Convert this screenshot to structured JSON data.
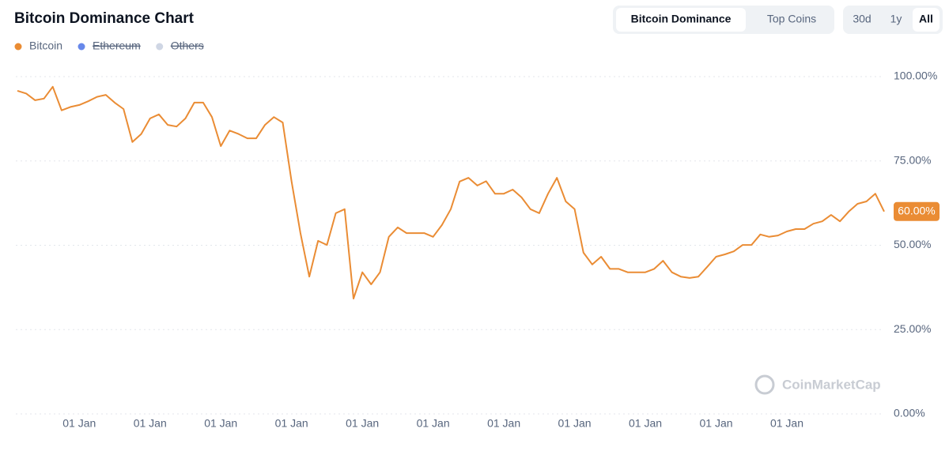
{
  "chart_data": {
    "type": "line",
    "title": "Bitcoin Dominance Chart",
    "tabs": {
      "items": [
        "Bitcoin Dominance",
        "Top Coins"
      ],
      "active": 0
    },
    "ranges": {
      "items": [
        "30d",
        "1y",
        "All"
      ],
      "active": 2
    },
    "watermark": "CoinMarketCap",
    "categories": [
      null,
      null,
      null,
      null,
      null,
      null,
      null,
      "01 Jan",
      null,
      null,
      null,
      null,
      null,
      null,
      null,
      "01 Jan",
      null,
      null,
      null,
      null,
      null,
      null,
      null,
      "01 Jan",
      null,
      null,
      null,
      null,
      null,
      null,
      null,
      "01 Jan",
      null,
      null,
      null,
      null,
      null,
      null,
      null,
      "01 Jan",
      null,
      null,
      null,
      null,
      null,
      null,
      null,
      "01 Jan",
      null,
      null,
      null,
      null,
      null,
      null,
      null,
      "01 Jan",
      null,
      null,
      null,
      null,
      null,
      null,
      null,
      "01 Jan",
      null,
      null,
      null,
      null,
      null,
      null,
      null,
      "01 Jan",
      null,
      null,
      null,
      null,
      null,
      null,
      null,
      "01 Jan",
      null,
      null,
      null,
      null,
      null,
      null,
      null,
      "01 Jan",
      null,
      null,
      null,
      null,
      null,
      null,
      null,
      null,
      null,
      null,
      null
    ],
    "series": [
      {
        "name": "Bitcoin",
        "color": "#ea8c34",
        "values": [
          95.8,
          95,
          93,
          93.5,
          97,
          90,
          91,
          91.6,
          92.7,
          94,
          94.6,
          92.3,
          90.4,
          80.6,
          83,
          87.6,
          88.8,
          85.7,
          85.2,
          87.6,
          92.3,
          92.3,
          88,
          79.4,
          84,
          83,
          81.7,
          81.7,
          85.7,
          88,
          86.4,
          68.9,
          53.6,
          40.7,
          51.3,
          50.1,
          59.5,
          60.7,
          34.2,
          42,
          38.4,
          42,
          52.5,
          55.3,
          53.6,
          53.6,
          53.6,
          52.5,
          56,
          60.7,
          68.9,
          70,
          67.7,
          69,
          65.3,
          65.3,
          66.5,
          64.2,
          60.7,
          59.5,
          65.3,
          70,
          63,
          60.7,
          47.8,
          44.3,
          46.6,
          43,
          43,
          42,
          42,
          42,
          43,
          45.4,
          42,
          40.7,
          40.3,
          40.7,
          43.6,
          46.6,
          47.3,
          48.2,
          50.1,
          50.1,
          53.2,
          52.5,
          52.9,
          54.1,
          54.8,
          54.8,
          56.4,
          57.1,
          59,
          57.1,
          60,
          62.3,
          63,
          65.3,
          60
        ],
        "value_labels": [
          null,
          null,
          null,
          null,
          null,
          null,
          null,
          null,
          null,
          null,
          null,
          null,
          null,
          null,
          null,
          null,
          null,
          null,
          null,
          null,
          null,
          null,
          null,
          null,
          null,
          null,
          null,
          null,
          null,
          null,
          null,
          null,
          null,
          null,
          null,
          null,
          null,
          null,
          null,
          null,
          null,
          null,
          null,
          null,
          null,
          null,
          null,
          null,
          null,
          null,
          null,
          null,
          null,
          null,
          null,
          null,
          null,
          null,
          null,
          null,
          null,
          null,
          null,
          null,
          null,
          null,
          null,
          null,
          null,
          null,
          null,
          null,
          null,
          null,
          null,
          null,
          null,
          null,
          null,
          null,
          null,
          null,
          null,
          null,
          null,
          null,
          null,
          null,
          null,
          null,
          null,
          null,
          null,
          null,
          null,
          null,
          null,
          null,
          "60.00%"
        ]
      }
    ],
    "hidden_series": [
      {
        "name": "Ethereum",
        "color": "#6788ea"
      },
      {
        "name": "Others",
        "color": "#cfd6e4"
      }
    ],
    "ylim": [
      0,
      100
    ],
    "yticks": [
      {
        "value": 0,
        "label": "0.00%"
      },
      {
        "value": 25,
        "label": "25.00%"
      },
      {
        "value": 50,
        "label": "50.00%"
      },
      {
        "value": 75,
        "label": "75.00%"
      },
      {
        "value": 100,
        "label": "100.00%"
      }
    ],
    "grid": true
  }
}
